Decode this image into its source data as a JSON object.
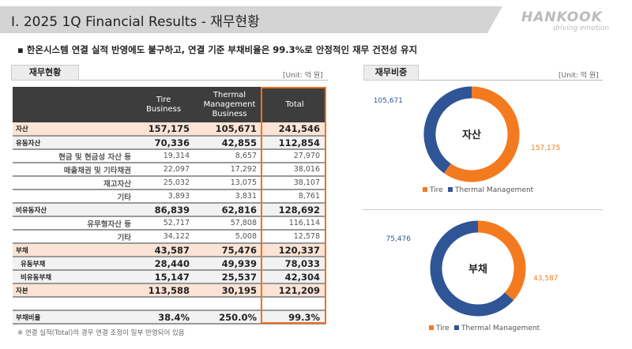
{
  "header": {
    "title": "I. 2025 1Q Financial Results - 재무현황",
    "logo": "HANKOOK",
    "logo_tagline": "driving emotion"
  },
  "bullet": "▪  한온시스템 연결 실적 반영에도 불구하고, 연결 기준 부채비율은 99.3%로 안정적인 재무 건전성 유지",
  "table_section": {
    "tab": "재무현황",
    "unit": "[Unit: 억 원]",
    "columns": [
      "Tire\nBusiness",
      "Thermal\nManagement\nBusiness",
      "Total"
    ],
    "rows": [
      {
        "label": "자산",
        "values": [
          "157,175",
          "105,671",
          "241,546"
        ],
        "style": "hl big"
      },
      {
        "label": "유동자산",
        "values": [
          "70,336",
          "42,855",
          "112,854"
        ],
        "style": "gr big"
      },
      {
        "label": "현금 및 현금성 자산 등",
        "values": [
          "19,314",
          "8,657",
          "27,970"
        ],
        "style": "small",
        "indent": true
      },
      {
        "label": "매출채권 및 기타채권",
        "values": [
          "22,097",
          "17,292",
          "38,016"
        ],
        "style": "small",
        "indent": true
      },
      {
        "label": "재고자산",
        "values": [
          "25,032",
          "13,075",
          "38,107"
        ],
        "style": "small",
        "indent": true
      },
      {
        "label": "기타",
        "values": [
          "3,893",
          "3,831",
          "8,761"
        ],
        "style": "small",
        "indent": true
      },
      {
        "label": "비유동자산",
        "values": [
          "86,839",
          "62,816",
          "128,692"
        ],
        "style": "gr big"
      },
      {
        "label": "유무형자산 등",
        "values": [
          "52,717",
          "57,808",
          "116,114"
        ],
        "style": "small",
        "indent": true
      },
      {
        "label": "기타",
        "values": [
          "34,122",
          "5,008",
          "12,578"
        ],
        "style": "small",
        "indent": true
      },
      {
        "label": "부채",
        "values": [
          "43,587",
          "75,476",
          "120,337"
        ],
        "style": "hl big"
      },
      {
        "label": "유동부채",
        "values": [
          "28,440",
          "49,939",
          "78,033"
        ],
        "style": "gr big"
      },
      {
        "label": "비유동부채",
        "values": [
          "15,147",
          "25,537",
          "42,304"
        ],
        "style": "gr big"
      },
      {
        "label": "자본",
        "values": [
          "113,588",
          "30,195",
          "121,209"
        ],
        "style": "hl big"
      },
      {
        "label": "",
        "values": [
          "",
          "",
          ""
        ],
        "style": ""
      },
      {
        "label": "부채비율",
        "values": [
          "38.4%",
          "250.0%",
          "99.3%"
        ],
        "style": "gr big"
      }
    ],
    "note": "※ 연결 실적(Total)의 경우 연결 조정이 일부 반영되어 있음"
  },
  "chart_section": {
    "tab": "재무비중",
    "unit": "[Unit: 억 원]"
  },
  "chart_data": [
    {
      "type": "pie",
      "donut": true,
      "center_label": "자산",
      "series": [
        {
          "name": "Tire",
          "value": 157175,
          "label": "157,175",
          "color": "#f47a20"
        },
        {
          "name": "Thermal Management",
          "value": 105671,
          "label": "105,671",
          "color": "#2f5597"
        }
      ],
      "legend": "bottom"
    },
    {
      "type": "pie",
      "donut": true,
      "center_label": "부채",
      "series": [
        {
          "name": "Tire",
          "value": 43587,
          "label": "43,587",
          "color": "#f47a20"
        },
        {
          "name": "Thermal Management",
          "value": 75476,
          "label": "75,476",
          "color": "#2f5597"
        }
      ],
      "legend": "bottom"
    }
  ]
}
